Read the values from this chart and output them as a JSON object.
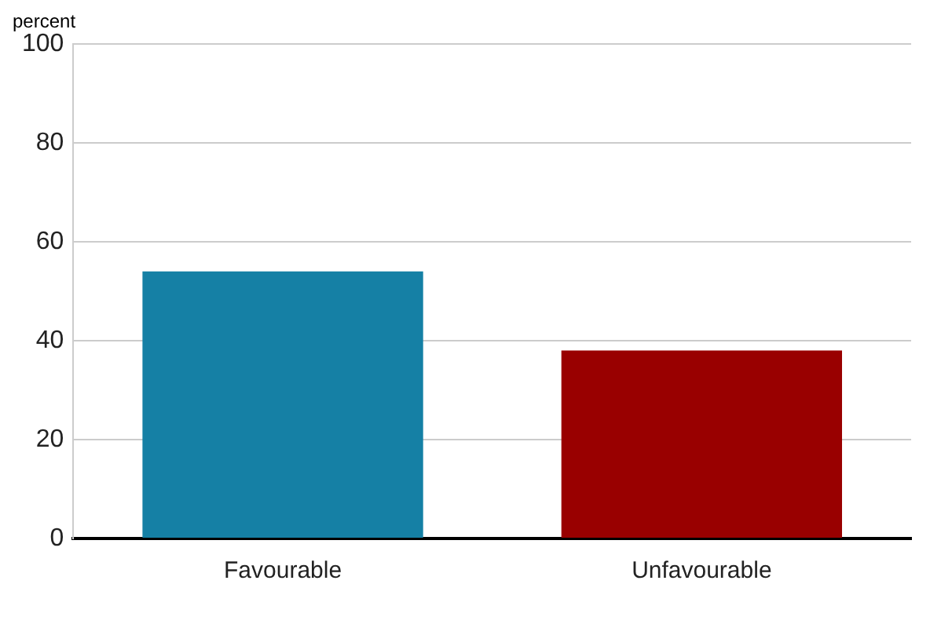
{
  "chart_data": {
    "type": "bar",
    "ylabel": "percent",
    "categories": [
      "Favourable",
      "Unfavourable"
    ],
    "values": [
      54,
      38
    ],
    "colors": [
      "#1580a5",
      "#990000"
    ],
    "ylim": [
      0,
      100
    ],
    "yticks": [
      0,
      20,
      40,
      60,
      80,
      100
    ],
    "grid": "y"
  }
}
